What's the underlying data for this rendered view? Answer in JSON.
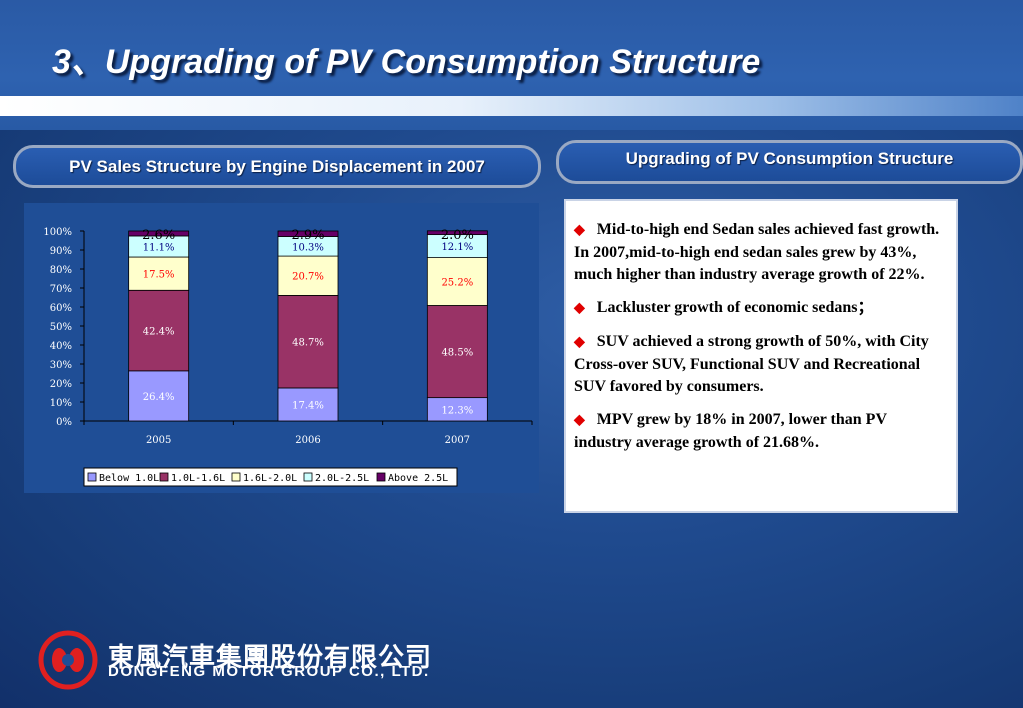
{
  "header": {
    "title": "3、Upgrading of PV Consumption Structure"
  },
  "left_panel": {
    "heading": "PV Sales Structure by Engine Displacement in 2007"
  },
  "right_panel": {
    "heading": "Upgrading of PV Consumption Structure",
    "bullets": [
      "Mid-to-high end Sedan sales achieved fast growth. In 2007,mid-to-high end sedan sales grew by 43%, much higher than industry average growth of 22%.",
      "Lackluster growth of economic sedans；",
      "SUV achieved a strong growth of 50%, with City Cross-over SUV, Functional SUV and Recreational SUV favored by  consumers.",
      "MPV grew by 18% in 2007, lower than PV industry average growth of 21.68%."
    ],
    "bullet_icon": "diamond-icon",
    "bullet_color": "#e00000"
  },
  "footer": {
    "company_cn": "東風汽車集團股份有限公司",
    "company_en": "DONGFENG MOTOR GROUP CO., LTD.",
    "logo_icon": "dongfeng-logo-icon",
    "logo_color": "#e02020"
  },
  "chart_data": {
    "type": "bar",
    "stacked": true,
    "categories": [
      "2005",
      "2006",
      "2007"
    ],
    "y_ticks": [
      "0%",
      "10%",
      "20%",
      "30%",
      "40%",
      "50%",
      "60%",
      "70%",
      "80%",
      "90%",
      "100%"
    ],
    "ylim": [
      0,
      100
    ],
    "legend_position": "bottom",
    "series": [
      {
        "name": "Below 1.0L",
        "values": [
          26.4,
          17.4,
          12.3
        ],
        "labels": [
          "26.4%",
          "17.4%",
          "12.3%"
        ],
        "color": "#9999ff",
        "label_color": "#ffffff"
      },
      {
        "name": "1.0L-1.6L",
        "values": [
          42.4,
          48.7,
          48.5
        ],
        "labels": [
          "42.4%",
          "48.7%",
          "48.5%"
        ],
        "color": "#993366",
        "label_color": "#ffffff"
      },
      {
        "name": "1.6L-2.0L",
        "values": [
          17.5,
          20.7,
          25.2
        ],
        "labels": [
          "17.5%",
          "20.7%",
          "25.2%"
        ],
        "color": "#ffffcc",
        "label_color": "#ff0000"
      },
      {
        "name": "2.0L-2.5L",
        "values": [
          11.1,
          10.3,
          12.1
        ],
        "labels": [
          "11.1%",
          "10.3%",
          "12.1%"
        ],
        "color": "#ccffff",
        "label_color": "#000080"
      },
      {
        "name": "Above 2.5L",
        "values": [
          2.6,
          2.9,
          2.0
        ],
        "labels": [
          "2.6%",
          "2.9%",
          "2.0%"
        ],
        "color": "#660066",
        "label_color": "#000000"
      }
    ]
  }
}
